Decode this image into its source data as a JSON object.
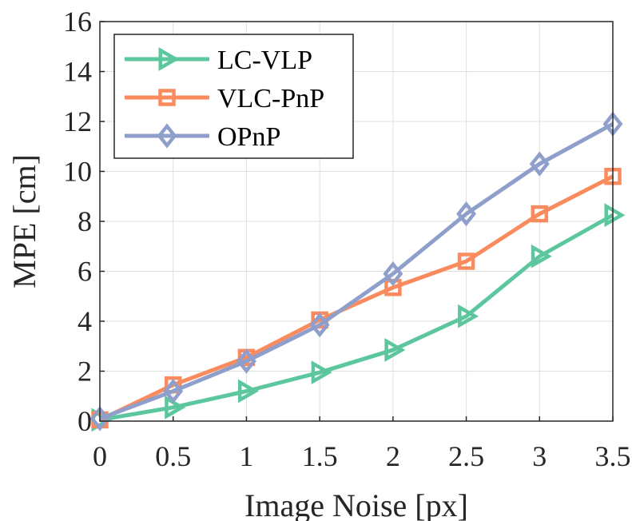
{
  "chart_data": {
    "type": "line",
    "title": "",
    "xlabel": "Image Noise [px]",
    "ylabel": "MPE [cm]",
    "x": [
      0,
      0.5,
      1,
      1.5,
      2,
      2.5,
      3,
      3.5
    ],
    "xlim": [
      0,
      3.5
    ],
    "ylim": [
      0,
      16
    ],
    "xticks": [
      "0",
      "0.5",
      "1",
      "1.5",
      "2",
      "2.5",
      "3",
      "3.5"
    ],
    "yticks": [
      "0",
      "2",
      "4",
      "6",
      "8",
      "10",
      "12",
      "14",
      "16"
    ],
    "grid": true,
    "legend_position": "top-left",
    "series": [
      {
        "name": "LC-VLP",
        "color": "#5cc79e",
        "marker": "triangle-right",
        "values": [
          0.05,
          0.55,
          1.2,
          1.95,
          2.85,
          4.2,
          6.6,
          8.25
        ]
      },
      {
        "name": "VLC-PnP",
        "color": "#f98b5e",
        "marker": "square",
        "values": [
          0.05,
          1.45,
          2.55,
          4.05,
          5.35,
          6.4,
          8.3,
          9.8
        ]
      },
      {
        "name": "OPnP",
        "color": "#8f9fcb",
        "marker": "diamond",
        "values": [
          0.1,
          1.2,
          2.4,
          3.85,
          5.9,
          8.3,
          10.3,
          11.9
        ]
      }
    ]
  }
}
